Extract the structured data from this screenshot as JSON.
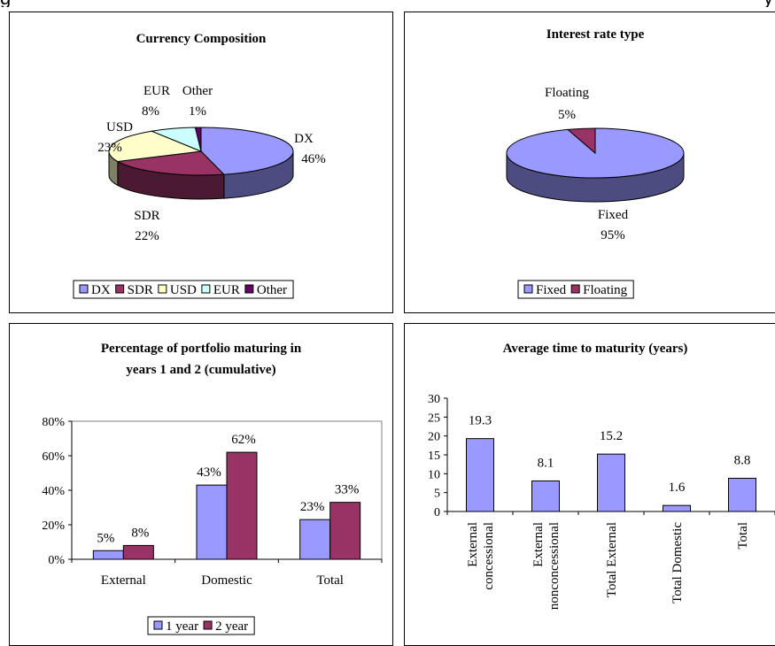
{
  "header": {
    "left_fragment": "g",
    "right_fragment": "y"
  },
  "charts": [
    {
      "type": "pie",
      "title": "Currency Composition",
      "slices": [
        {
          "name": "DX",
          "value": 46,
          "label": "46%",
          "color": "#9999FF",
          "dark": "#4C4C80"
        },
        {
          "name": "SDR",
          "value": 22,
          "label": "22%",
          "color": "#993366",
          "dark": "#4C1933"
        },
        {
          "name": "USD",
          "value": 23,
          "label": "23%",
          "color": "#FFFFCC",
          "dark": "#808066"
        },
        {
          "name": "EUR",
          "value": 8,
          "label": "8%",
          "color": "#CCFFFF",
          "dark": "#668080"
        },
        {
          "name": "Other",
          "value": 1,
          "label": "1%",
          "color": "#660066",
          "dark": "#330033"
        }
      ]
    },
    {
      "type": "pie",
      "title": "Interest rate type",
      "slices": [
        {
          "name": "Fixed",
          "value": 95,
          "label": "95%",
          "color": "#9999FF",
          "dark": "#4C4C80"
        },
        {
          "name": "Floating",
          "value": 5,
          "label": "5%",
          "color": "#993366",
          "dark": "#4C1933"
        }
      ]
    },
    {
      "type": "bar",
      "title_lines": [
        "Percentage of portfolio maturing in",
        "years 1 and 2 (cumulative)"
      ],
      "categories": [
        "External",
        "Domestic",
        "Total"
      ],
      "series": [
        {
          "name": "1 year",
          "values": [
            5,
            43,
            23
          ],
          "labels": [
            "5%",
            "43%",
            "23%"
          ],
          "color": "#9999FF"
        },
        {
          "name": "2 year",
          "values": [
            8,
            62,
            33
          ],
          "labels": [
            "8%",
            "62%",
            "33%"
          ],
          "color": "#993366"
        }
      ],
      "yticks": [
        "0%",
        "20%",
        "40%",
        "60%",
        "80%"
      ],
      "ylim": [
        0,
        80
      ]
    },
    {
      "type": "bar",
      "title": "Average time to maturity (years)",
      "categories": [
        [
          "External",
          "concessional"
        ],
        [
          "External",
          "nonconcessional"
        ],
        [
          "Total External"
        ],
        [
          "Total Domestic"
        ],
        [
          "Total"
        ]
      ],
      "values": [
        19.3,
        8.1,
        15.2,
        1.6,
        8.8
      ],
      "labels": [
        "19.3",
        "8.1",
        "15.2",
        "1.6",
        "8.8"
      ],
      "color": "#9999FF",
      "yticks": [
        "0",
        "5",
        "10",
        "15",
        "20",
        "25",
        "30"
      ],
      "ylim": [
        0,
        30
      ]
    }
  ]
}
